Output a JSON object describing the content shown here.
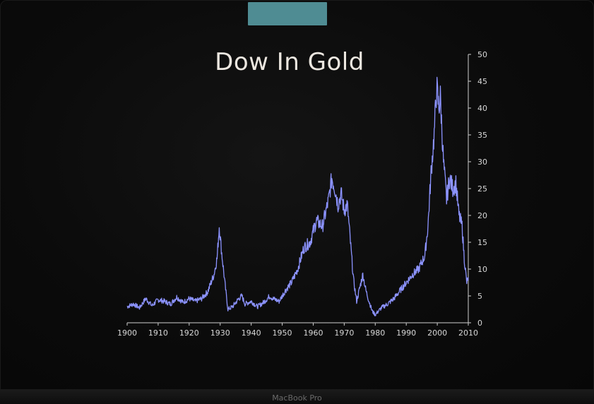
{
  "device": {
    "brand_label": "MacBook Pro",
    "camera_tab_color": "#4f8c93"
  },
  "chart_data": {
    "type": "line",
    "title": "Dow In Gold",
    "xlabel": "",
    "ylabel": "",
    "xlim": [
      1900,
      2010
    ],
    "ylim": [
      0,
      50
    ],
    "x_ticks": [
      "1900",
      "1910",
      "1920",
      "1930",
      "1940",
      "1950",
      "1960",
      "1970",
      "1980",
      "1990",
      "2000",
      "2010"
    ],
    "y_ticks": [
      "0",
      "5",
      "10",
      "15",
      "20",
      "25",
      "30",
      "35",
      "40",
      "45",
      "50"
    ],
    "y_axis_side": "right",
    "grid": false,
    "legend": "none",
    "line_color": "#8c93ff",
    "series": [
      {
        "x": [
          1900,
          1902,
          1904,
          1906,
          1908,
          1910,
          1912,
          1914,
          1916,
          1918,
          1920,
          1922,
          1924,
          1926,
          1928,
          1929,
          1929.7,
          1930.5,
          1931.5,
          1932.5,
          1934,
          1936,
          1937,
          1938,
          1940,
          1942,
          1944,
          1946,
          1947,
          1949,
          1951,
          1953,
          1955,
          1957,
          1959,
          1961,
          1963,
          1965,
          1966,
          1967,
          1968,
          1969,
          1970,
          1971,
          1972,
          1973,
          1974,
          1975,
          1976,
          1977,
          1978,
          1979,
          1980,
          1982,
          1984,
          1986,
          1988,
          1990,
          1992,
          1994,
          1996,
          1997,
          1998,
          1999,
          1999.8,
          2000.5,
          2001,
          2002,
          2003,
          2004,
          2005,
          2006,
          2007,
          2008,
          2008.7,
          2009.5,
          2010
        ],
        "y": [
          3.0,
          3.5,
          2.8,
          4.5,
          3.2,
          4.3,
          4.0,
          3.5,
          4.8,
          3.8,
          4.5,
          4.0,
          4.5,
          5.8,
          9.0,
          12.0,
          18.0,
          13.0,
          7.5,
          2.5,
          3.0,
          4.5,
          5.0,
          3.5,
          4.0,
          3.0,
          3.8,
          5.0,
          4.5,
          4.0,
          6.0,
          7.5,
          10.0,
          14.0,
          15.0,
          19.0,
          18.0,
          23.0,
          27.0,
          25.0,
          22.0,
          24.0,
          21.0,
          22.0,
          15.0,
          8.0,
          4.0,
          6.5,
          9.0,
          6.0,
          4.0,
          2.2,
          1.5,
          2.8,
          3.5,
          4.5,
          6.0,
          7.5,
          9.0,
          10.0,
          12.5,
          18.0,
          28.0,
          35.0,
          44.0,
          40.0,
          42.0,
          30.0,
          23.0,
          27.0,
          25.0,
          26.0,
          20.0,
          18.0,
          12.0,
          7.5,
          8.5
        ]
      }
    ]
  }
}
